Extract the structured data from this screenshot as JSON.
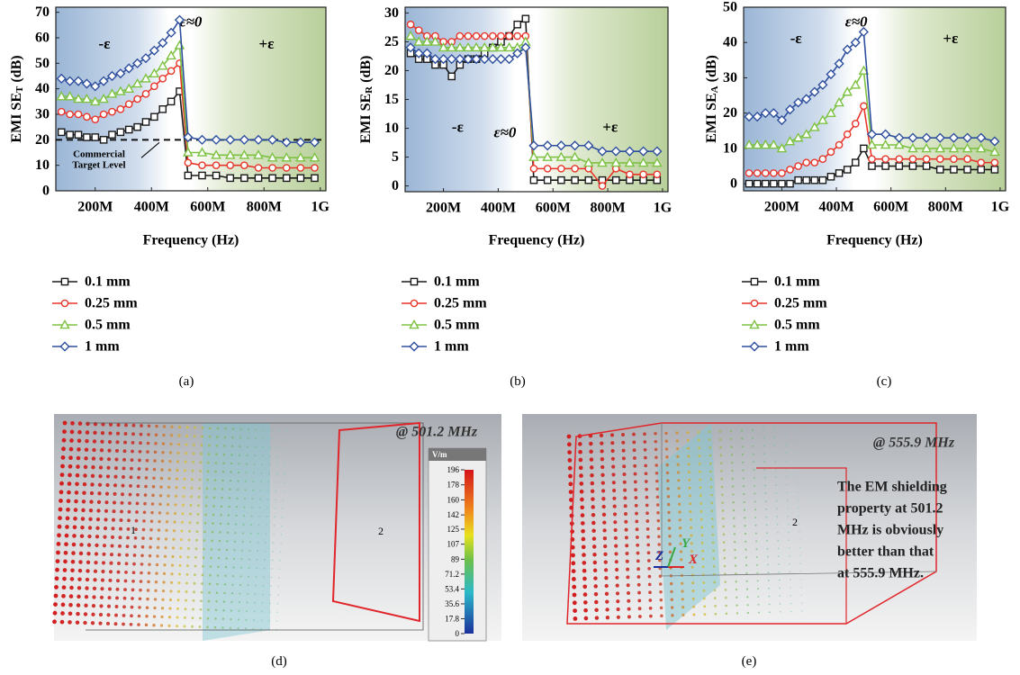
{
  "chart_data": [
    {
      "type": "line",
      "panel_label": "(a)",
      "xlabel": "Frequency (Hz)",
      "ylabel": "EMI SE",
      "ylabel_sub": "T",
      "ylabel_unit": "(dB)",
      "annotations": [
        "-ε",
        "ε≈0",
        "+ε"
      ],
      "target_line": {
        "value": 20,
        "label_lines": [
          "Commercial",
          "Target Level"
        ]
      },
      "x": [
        80000000,
        110000000,
        140000000,
        170000000,
        200000000,
        230000000,
        260000000,
        290000000,
        320000000,
        350000000,
        380000000,
        410000000,
        440000000,
        470000000,
        500000000,
        530000000,
        580000000,
        630000000,
        680000000,
        730000000,
        780000000,
        830000000,
        880000000,
        930000000,
        980000000
      ],
      "xlim": [
        60000000,
        1020000000
      ],
      "xticks": [
        {
          "value": 200000000,
          "label": "200M"
        },
        {
          "value": 400000000,
          "label": "400M"
        },
        {
          "value": 600000000,
          "label": "600M"
        },
        {
          "value": 800000000,
          "label": "800M"
        },
        {
          "value": 1000000000,
          "label": "1G"
        }
      ],
      "ylim": [
        0,
        72
      ],
      "yticks": [
        0,
        10,
        20,
        30,
        40,
        50,
        60,
        70
      ],
      "series": [
        {
          "name": "0.1 mm",
          "color": "#1a1a1a",
          "marker": "square",
          "values": [
            23,
            22,
            22,
            21,
            21,
            20,
            22,
            23,
            24,
            25,
            27,
            29,
            32,
            35,
            39,
            6,
            6,
            6,
            5,
            5,
            5,
            5,
            5,
            5,
            5
          ]
        },
        {
          "name": "0.25 mm",
          "color": "#e8352a",
          "marker": "circle",
          "values": [
            31,
            30,
            30,
            29,
            28,
            30,
            31,
            32,
            34,
            36,
            38,
            41,
            44,
            47,
            50,
            11,
            10,
            10,
            10,
            10,
            9,
            9,
            9,
            9,
            9
          ]
        },
        {
          "name": "0.5 mm",
          "color": "#7dc242",
          "marker": "triangle",
          "values": [
            37,
            37,
            36,
            36,
            35,
            36,
            38,
            39,
            40,
            42,
            44,
            46,
            49,
            53,
            57,
            15,
            15,
            14,
            14,
            14,
            14,
            13,
            13,
            13,
            13
          ]
        },
        {
          "name": "1 mm",
          "color": "#2e4f9e",
          "marker": "diamond",
          "values": [
            44,
            43,
            43,
            42,
            41,
            43,
            45,
            46,
            48,
            50,
            52,
            55,
            58,
            62,
            67,
            21,
            20,
            20,
            20,
            20,
            20,
            20,
            19,
            19,
            19
          ]
        }
      ]
    },
    {
      "type": "line",
      "panel_label": "(b)",
      "xlabel": "Frequency (Hz)",
      "ylabel": "EMI SE",
      "ylabel_sub": "R",
      "ylabel_unit": "(dB)",
      "annotations": [
        "-ε",
        "ε≈0",
        "+ε"
      ],
      "x": [
        80000000,
        110000000,
        140000000,
        170000000,
        200000000,
        230000000,
        260000000,
        290000000,
        320000000,
        350000000,
        380000000,
        410000000,
        440000000,
        470000000,
        500000000,
        530000000,
        580000000,
        630000000,
        680000000,
        730000000,
        780000000,
        830000000,
        880000000,
        930000000,
        980000000
      ],
      "xlim": [
        60000000,
        1020000000
      ],
      "xticks": [
        {
          "value": 200000000,
          "label": "200M"
        },
        {
          "value": 400000000,
          "label": "400M"
        },
        {
          "value": 600000000,
          "label": "600M"
        },
        {
          "value": 800000000,
          "label": "800M"
        },
        {
          "value": 1000000000,
          "label": "1G"
        }
      ],
      "ylim": [
        -1,
        31
      ],
      "yticks": [
        0,
        5,
        10,
        15,
        20,
        25,
        30
      ],
      "series": [
        {
          "name": "0.1 mm",
          "color": "#1a1a1a",
          "marker": "square",
          "values": [
            23,
            22,
            22,
            21,
            21,
            19,
            21,
            22,
            22,
            23,
            24,
            25,
            26,
            28,
            29,
            1,
            1,
            1,
            1,
            1,
            1,
            1,
            1,
            1,
            1
          ]
        },
        {
          "name": "0.25 mm",
          "color": "#e8352a",
          "marker": "circle",
          "values": [
            28,
            27,
            26,
            26,
            25,
            25,
            26,
            26,
            26,
            26,
            26,
            26,
            26,
            26,
            26,
            3,
            3,
            3,
            3,
            3,
            0,
            3,
            2,
            2,
            2
          ]
        },
        {
          "name": "0.5 mm",
          "color": "#7dc242",
          "marker": "triangle",
          "values": [
            26,
            25,
            25,
            25,
            24,
            24,
            24,
            24,
            24,
            24,
            24,
            24,
            24,
            24,
            25,
            5,
            5,
            5,
            5,
            4,
            4,
            4,
            4,
            4,
            4
          ]
        },
        {
          "name": "1 mm",
          "color": "#2e4f9e",
          "marker": "diamond",
          "values": [
            24,
            23,
            23,
            22,
            22,
            22,
            22,
            22,
            22,
            22,
            22,
            22,
            22,
            23,
            24,
            7,
            7,
            7,
            7,
            7,
            6,
            6,
            6,
            6,
            6
          ]
        }
      ]
    },
    {
      "type": "line",
      "panel_label": "(c)",
      "xlabel": "Frequency (Hz)",
      "ylabel": "EMI SE",
      "ylabel_sub": "A",
      "ylabel_unit": "(dB)",
      "annotations": [
        "-ε",
        "ε≈0",
        "+ε"
      ],
      "x": [
        80000000,
        110000000,
        140000000,
        170000000,
        200000000,
        230000000,
        260000000,
        290000000,
        320000000,
        350000000,
        380000000,
        410000000,
        440000000,
        470000000,
        500000000,
        530000000,
        580000000,
        630000000,
        680000000,
        730000000,
        780000000,
        830000000,
        880000000,
        930000000,
        980000000
      ],
      "xlim": [
        60000000,
        1020000000
      ],
      "xticks": [
        {
          "value": 200000000,
          "label": "200M"
        },
        {
          "value": 400000000,
          "label": "400M"
        },
        {
          "value": 600000000,
          "label": "600M"
        },
        {
          "value": 800000000,
          "label": "800M"
        },
        {
          "value": 1000000000,
          "label": "1G"
        }
      ],
      "ylim": [
        -2,
        50
      ],
      "yticks": [
        0,
        10,
        20,
        30,
        40,
        50
      ],
      "series": [
        {
          "name": "0.1 mm",
          "color": "#1a1a1a",
          "marker": "square",
          "values": [
            0,
            0,
            0,
            0,
            0,
            0,
            1,
            1,
            1,
            1,
            2,
            3,
            4,
            6,
            10,
            5,
            5,
            5,
            5,
            5,
            4,
            4,
            4,
            4,
            4
          ]
        },
        {
          "name": "0.25 mm",
          "color": "#e8352a",
          "marker": "circle",
          "values": [
            3,
            3,
            3,
            3,
            3,
            4,
            5,
            6,
            6,
            7,
            9,
            11,
            14,
            17,
            22,
            7,
            7,
            7,
            7,
            7,
            7,
            7,
            7,
            6,
            6
          ]
        },
        {
          "name": "0.5 mm",
          "color": "#7dc242",
          "marker": "triangle",
          "values": [
            11,
            11,
            11,
            11,
            10,
            12,
            13,
            14,
            16,
            18,
            20,
            23,
            26,
            28,
            32,
            11,
            11,
            11,
            10,
            10,
            10,
            10,
            10,
            10,
            9
          ]
        },
        {
          "name": "1 mm",
          "color": "#2e4f9e",
          "marker": "diamond",
          "values": [
            19,
            19,
            20,
            20,
            18,
            21,
            23,
            24,
            26,
            28,
            31,
            34,
            38,
            40,
            43,
            14,
            14,
            13,
            13,
            13,
            13,
            13,
            13,
            13,
            12
          ]
        }
      ]
    }
  ],
  "panels": [
    {
      "label": "(d)",
      "title": "@ 501.2 MHz",
      "region_labels": [
        "1",
        "2"
      ],
      "colorbar": {
        "unit": "V/m",
        "ticks": [
          196,
          178,
          160,
          142,
          125,
          107,
          89,
          71.2,
          53.4,
          35.6,
          17.8,
          0
        ]
      }
    },
    {
      "label": "(e)",
      "title": "@ 555.9 MHz",
      "region_labels": [
        "2"
      ],
      "axes": [
        "Z",
        "Y",
        "X"
      ],
      "note_lines": [
        "The EM shielding",
        "property at 501.2",
        "MHz is obviously",
        "better than that",
        "at 555.9 MHz."
      ]
    }
  ]
}
